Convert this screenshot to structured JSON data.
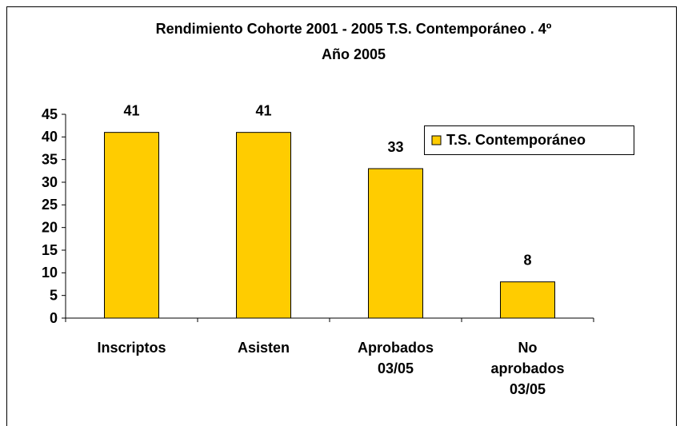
{
  "chart_data": {
    "type": "bar",
    "title": [
      "Rendimiento Cohorte 2001 - 2005 T.S. Contemporáneo . 4º",
      "Año 2005"
    ],
    "categories": [
      "Inscriptos",
      "Asisten",
      "Aprobados 03/05",
      "No aprobados 03/05"
    ],
    "series": [
      {
        "name": "T.S. Contemporáneo",
        "color": "#ffcc00",
        "values": [
          41,
          41,
          33,
          8
        ]
      }
    ],
    "ylim": [
      0,
      45
    ],
    "yticks": [
      0,
      5,
      10,
      15,
      20,
      25,
      30,
      35,
      40,
      45
    ],
    "grid": false,
    "legend": "right",
    "data_labels": true
  }
}
